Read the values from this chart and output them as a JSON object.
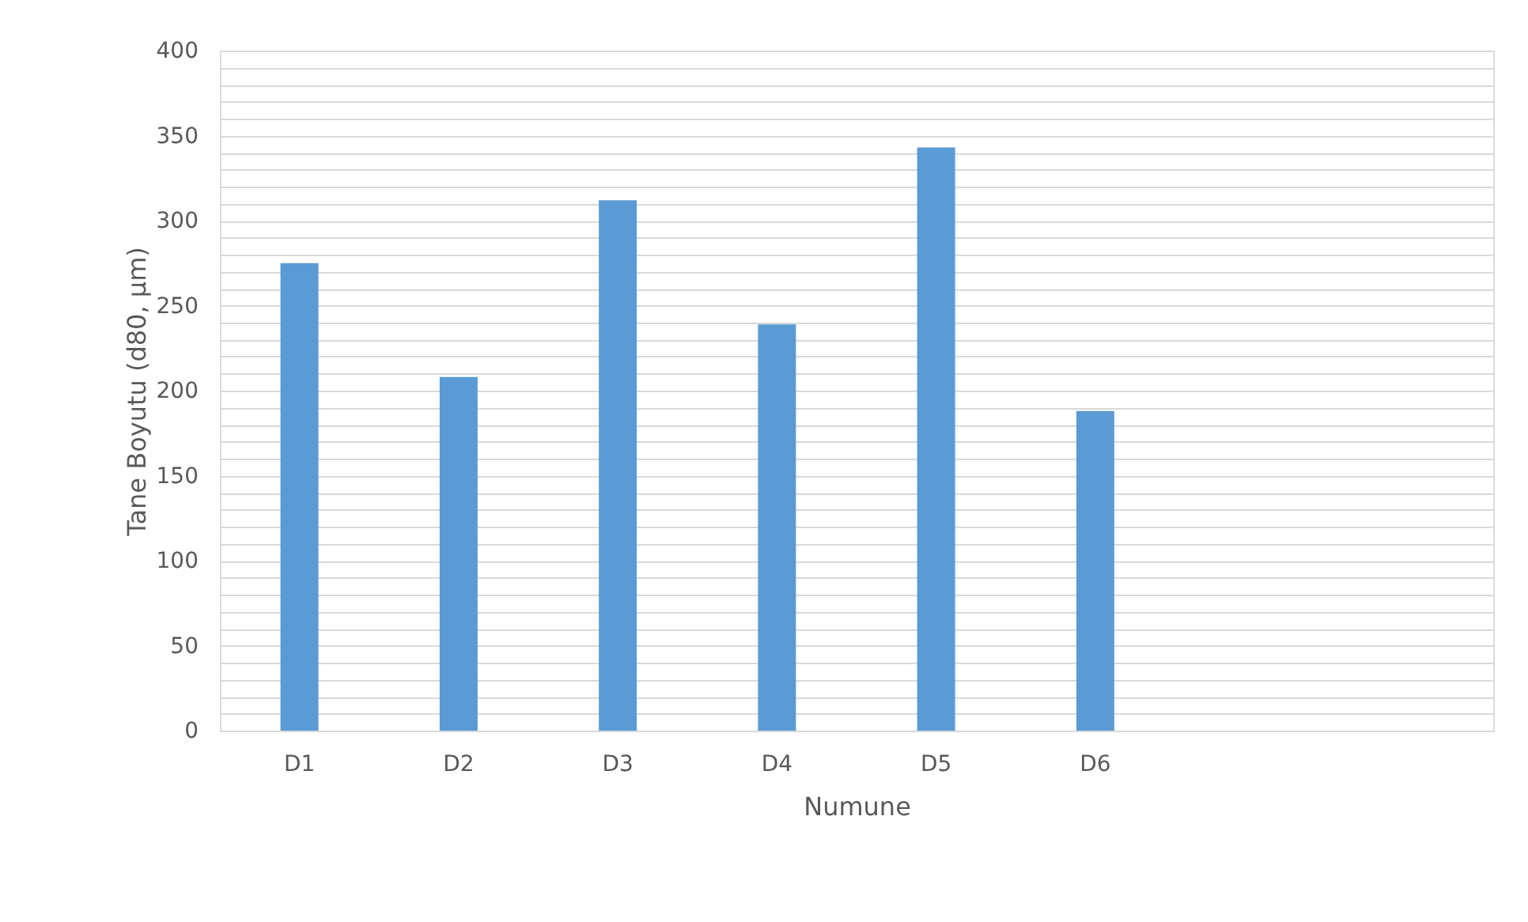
{
  "chart_data": {
    "type": "bar",
    "xlabel": "Numune",
    "ylabel": "Tane Boyutu (d80, µm)",
    "categories": [
      "D1",
      "D2",
      "D3",
      "D4",
      "D5",
      "D6",
      null,
      null
    ],
    "values": [
      275,
      208,
      312,
      239,
      343,
      188,
      null,
      null
    ],
    "color": "#5b9bd5",
    "ylim": [
      0,
      400
    ],
    "yticks": [
      0,
      {
        "value": 10,
        "label": null
      },
      {
        "value": 20,
        "label": null
      },
      {
        "value": 30,
        "label": null
      },
      {
        "value": 40,
        "label": null
      },
      50,
      {
        "value": 60,
        "label": null
      },
      {
        "value": 70,
        "label": null
      },
      {
        "value": 80,
        "label": null
      },
      {
        "value": 90,
        "label": null
      },
      100,
      {
        "value": 110,
        "label": null
      },
      {
        "value": 120,
        "label": null
      },
      {
        "value": 130,
        "label": null
      },
      {
        "value": 140,
        "label": null
      },
      150,
      {
        "value": 160,
        "label": null
      },
      {
        "value": 170,
        "label": null
      },
      {
        "value": 180,
        "label": null
      },
      {
        "value": 190,
        "label": null
      },
      200,
      {
        "value": 210,
        "label": null
      },
      {
        "value": 220,
        "label": null
      },
      {
        "value": 230,
        "label": null
      },
      {
        "value": 240,
        "label": null
      },
      250,
      {
        "value": 260,
        "label": null
      },
      {
        "value": 270,
        "label": null
      },
      {
        "value": 280,
        "label": null
      },
      {
        "value": 290,
        "label": null
      },
      300,
      {
        "value": 310,
        "label": null
      },
      {
        "value": 320,
        "label": null
      },
      {
        "value": 330,
        "label": null
      },
      {
        "value": 340,
        "label": null
      },
      350,
      {
        "value": 360,
        "label": null
      },
      {
        "value": 370,
        "label": null
      },
      {
        "value": 380,
        "label": null
      },
      {
        "value": 390,
        "label": null
      },
      400
    ],
    "grid": true
  }
}
